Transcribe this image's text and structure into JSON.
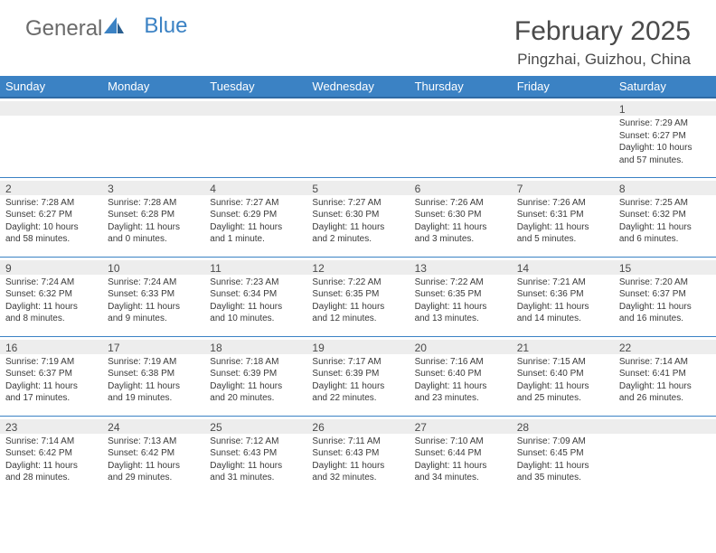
{
  "logo": {
    "text1": "General",
    "text2": "Blue"
  },
  "title": "February 2025",
  "location": "Pingzhai, Guizhou, China",
  "colors": {
    "header_bg": "#3b82c4",
    "header_border": "#2f6ba5",
    "band_bg": "#ededed",
    "text": "#3a3a3a",
    "logo_gray": "#6a6a6a",
    "logo_blue": "#3b82c4"
  },
  "weekdays": [
    "Sunday",
    "Monday",
    "Tuesday",
    "Wednesday",
    "Thursday",
    "Friday",
    "Saturday"
  ],
  "weeks": [
    [
      null,
      null,
      null,
      null,
      null,
      null,
      {
        "n": "1",
        "sunrise": "Sunrise: 7:29 AM",
        "sunset": "Sunset: 6:27 PM",
        "dl1": "Daylight: 10 hours",
        "dl2": "and 57 minutes."
      }
    ],
    [
      {
        "n": "2",
        "sunrise": "Sunrise: 7:28 AM",
        "sunset": "Sunset: 6:27 PM",
        "dl1": "Daylight: 10 hours",
        "dl2": "and 58 minutes."
      },
      {
        "n": "3",
        "sunrise": "Sunrise: 7:28 AM",
        "sunset": "Sunset: 6:28 PM",
        "dl1": "Daylight: 11 hours",
        "dl2": "and 0 minutes."
      },
      {
        "n": "4",
        "sunrise": "Sunrise: 7:27 AM",
        "sunset": "Sunset: 6:29 PM",
        "dl1": "Daylight: 11 hours",
        "dl2": "and 1 minute."
      },
      {
        "n": "5",
        "sunrise": "Sunrise: 7:27 AM",
        "sunset": "Sunset: 6:30 PM",
        "dl1": "Daylight: 11 hours",
        "dl2": "and 2 minutes."
      },
      {
        "n": "6",
        "sunrise": "Sunrise: 7:26 AM",
        "sunset": "Sunset: 6:30 PM",
        "dl1": "Daylight: 11 hours",
        "dl2": "and 3 minutes."
      },
      {
        "n": "7",
        "sunrise": "Sunrise: 7:26 AM",
        "sunset": "Sunset: 6:31 PM",
        "dl1": "Daylight: 11 hours",
        "dl2": "and 5 minutes."
      },
      {
        "n": "8",
        "sunrise": "Sunrise: 7:25 AM",
        "sunset": "Sunset: 6:32 PM",
        "dl1": "Daylight: 11 hours",
        "dl2": "and 6 minutes."
      }
    ],
    [
      {
        "n": "9",
        "sunrise": "Sunrise: 7:24 AM",
        "sunset": "Sunset: 6:32 PM",
        "dl1": "Daylight: 11 hours",
        "dl2": "and 8 minutes."
      },
      {
        "n": "10",
        "sunrise": "Sunrise: 7:24 AM",
        "sunset": "Sunset: 6:33 PM",
        "dl1": "Daylight: 11 hours",
        "dl2": "and 9 minutes."
      },
      {
        "n": "11",
        "sunrise": "Sunrise: 7:23 AM",
        "sunset": "Sunset: 6:34 PM",
        "dl1": "Daylight: 11 hours",
        "dl2": "and 10 minutes."
      },
      {
        "n": "12",
        "sunrise": "Sunrise: 7:22 AM",
        "sunset": "Sunset: 6:35 PM",
        "dl1": "Daylight: 11 hours",
        "dl2": "and 12 minutes."
      },
      {
        "n": "13",
        "sunrise": "Sunrise: 7:22 AM",
        "sunset": "Sunset: 6:35 PM",
        "dl1": "Daylight: 11 hours",
        "dl2": "and 13 minutes."
      },
      {
        "n": "14",
        "sunrise": "Sunrise: 7:21 AM",
        "sunset": "Sunset: 6:36 PM",
        "dl1": "Daylight: 11 hours",
        "dl2": "and 14 minutes."
      },
      {
        "n": "15",
        "sunrise": "Sunrise: 7:20 AM",
        "sunset": "Sunset: 6:37 PM",
        "dl1": "Daylight: 11 hours",
        "dl2": "and 16 minutes."
      }
    ],
    [
      {
        "n": "16",
        "sunrise": "Sunrise: 7:19 AM",
        "sunset": "Sunset: 6:37 PM",
        "dl1": "Daylight: 11 hours",
        "dl2": "and 17 minutes."
      },
      {
        "n": "17",
        "sunrise": "Sunrise: 7:19 AM",
        "sunset": "Sunset: 6:38 PM",
        "dl1": "Daylight: 11 hours",
        "dl2": "and 19 minutes."
      },
      {
        "n": "18",
        "sunrise": "Sunrise: 7:18 AM",
        "sunset": "Sunset: 6:39 PM",
        "dl1": "Daylight: 11 hours",
        "dl2": "and 20 minutes."
      },
      {
        "n": "19",
        "sunrise": "Sunrise: 7:17 AM",
        "sunset": "Sunset: 6:39 PM",
        "dl1": "Daylight: 11 hours",
        "dl2": "and 22 minutes."
      },
      {
        "n": "20",
        "sunrise": "Sunrise: 7:16 AM",
        "sunset": "Sunset: 6:40 PM",
        "dl1": "Daylight: 11 hours",
        "dl2": "and 23 minutes."
      },
      {
        "n": "21",
        "sunrise": "Sunrise: 7:15 AM",
        "sunset": "Sunset: 6:40 PM",
        "dl1": "Daylight: 11 hours",
        "dl2": "and 25 minutes."
      },
      {
        "n": "22",
        "sunrise": "Sunrise: 7:14 AM",
        "sunset": "Sunset: 6:41 PM",
        "dl1": "Daylight: 11 hours",
        "dl2": "and 26 minutes."
      }
    ],
    [
      {
        "n": "23",
        "sunrise": "Sunrise: 7:14 AM",
        "sunset": "Sunset: 6:42 PM",
        "dl1": "Daylight: 11 hours",
        "dl2": "and 28 minutes."
      },
      {
        "n": "24",
        "sunrise": "Sunrise: 7:13 AM",
        "sunset": "Sunset: 6:42 PM",
        "dl1": "Daylight: 11 hours",
        "dl2": "and 29 minutes."
      },
      {
        "n": "25",
        "sunrise": "Sunrise: 7:12 AM",
        "sunset": "Sunset: 6:43 PM",
        "dl1": "Daylight: 11 hours",
        "dl2": "and 31 minutes."
      },
      {
        "n": "26",
        "sunrise": "Sunrise: 7:11 AM",
        "sunset": "Sunset: 6:43 PM",
        "dl1": "Daylight: 11 hours",
        "dl2": "and 32 minutes."
      },
      {
        "n": "27",
        "sunrise": "Sunrise: 7:10 AM",
        "sunset": "Sunset: 6:44 PM",
        "dl1": "Daylight: 11 hours",
        "dl2": "and 34 minutes."
      },
      {
        "n": "28",
        "sunrise": "Sunrise: 7:09 AM",
        "sunset": "Sunset: 6:45 PM",
        "dl1": "Daylight: 11 hours",
        "dl2": "and 35 minutes."
      },
      null
    ]
  ]
}
